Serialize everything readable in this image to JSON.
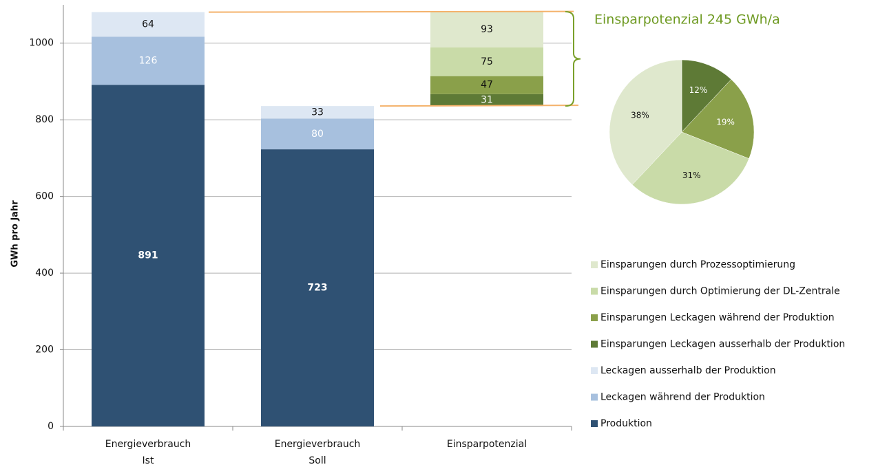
{
  "chart_data": [
    {
      "type": "bar",
      "stacked": true,
      "waterfall_last": true,
      "y_label": "GWh pro Jahr",
      "categories": [
        "Energieverbrauch Ist",
        "Energieverbrauch Soll",
        "Einsparpotenzial"
      ],
      "series": [
        {
          "name": "Produktion",
          "color": "#2f5173",
          "label_color": "#ffffff",
          "label_bold": true,
          "values": [
            891,
            723,
            null
          ]
        },
        {
          "name": "Leckagen während der Produktion",
          "color": "#a7c0de",
          "label_color": "#ffffff",
          "values": [
            126,
            80,
            null
          ]
        },
        {
          "name": "Leckagen ausserhalb der Produktion",
          "color": "#dde7f3",
          "label_color": "#111111",
          "values": [
            64,
            33,
            null
          ]
        },
        {
          "name": "Einsparungen Leckagen ausserhalb der Produktion",
          "color": "#5e7a36",
          "label_color": "#ffffff",
          "values": [
            null,
            null,
            31
          ]
        },
        {
          "name": "Einsparungen Leckagen während der Produktion",
          "color": "#8aa04a",
          "label_color": "#111111",
          "values": [
            null,
            null,
            47
          ]
        },
        {
          "name": "Einsparungen durch Optimierung der DL-Zentrale",
          "color": "#c9dba8",
          "label_color": "#111111",
          "values": [
            null,
            null,
            75
          ]
        },
        {
          "name": "Einsparungen durch Prozessoptimierung",
          "color": "#dfe8cd",
          "label_color": "#111111",
          "values": [
            null,
            null,
            93
          ]
        }
      ],
      "ylim": [
        0,
        1100
      ],
      "yticks": [
        0,
        200,
        400,
        600,
        800,
        1000
      ],
      "grid": true,
      "annotation": "Einsparpotenzial 245 GWh/a"
    },
    {
      "type": "pie",
      "values": [
        12,
        19,
        31,
        38
      ],
      "value_labels": [
        "12%",
        "19%",
        "31%",
        "38%"
      ],
      "colors": [
        "#5e7a36",
        "#8aa04a",
        "#c9dba8",
        "#dfe8cd"
      ],
      "label_colors": [
        "#ffffff",
        "#ffffff",
        "#111111",
        "#111111"
      ]
    }
  ]
}
